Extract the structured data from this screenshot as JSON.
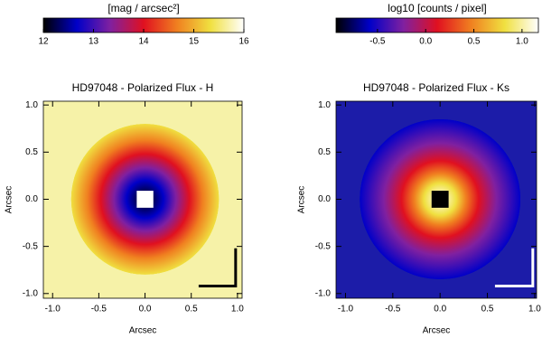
{
  "chart_data": [
    {
      "type": "image",
      "title": "HD97048 - Polarized Flux - H",
      "xlabel": "Arcsec",
      "ylabel": "Arcsec",
      "colorbar_label": "[mag / arcsec²]",
      "clim": [
        12,
        16
      ],
      "cticks": [
        12,
        13,
        14,
        15,
        16
      ],
      "colormap": [
        "#000000",
        "#0000c8",
        "#8020a0",
        "#e01020",
        "#f08020",
        "#f0e040",
        "#ffffff"
      ],
      "xlim": [
        -1.1,
        1.05
      ],
      "ylim": [
        -1.05,
        1.04
      ],
      "xticks": [
        {
          "value": -1.0,
          "label": "-1.0"
        },
        -0.5,
        {
          "value": 0.0,
          "label": "0.0"
        },
        0.5,
        {
          "value": 1.0,
          "label": "1.0"
        }
      ],
      "yticks": [
        {
          "value": -1.0,
          "label": "-1.0"
        },
        -0.5,
        {
          "value": 0.0,
          "label": "0.0"
        },
        0.5,
        {
          "value": 1.0,
          "label": "1.0"
        }
      ]
    },
    {
      "type": "image",
      "title": "HD97048 - Polarized Flux - Ks",
      "xlabel": "Arcsec",
      "ylabel": "Arcsec",
      "colorbar_label": "log10 [counts / pixel]",
      "clim": [
        -0.93,
        1.17
      ],
      "cticks": [
        -0.5,
        {
          "value": 0.0,
          "label": "0.0"
        },
        0.5,
        {
          "value": 1.0,
          "label": "1.0"
        }
      ],
      "colormap": [
        "#000000",
        "#0000c8",
        "#8020a0",
        "#e01020",
        "#f08020",
        "#f0e040",
        "#ffffff"
      ],
      "xlim": [
        -1.1,
        1.02
      ],
      "ylim": [
        -1.05,
        1.04
      ],
      "xticks": [
        {
          "value": -1.0,
          "label": "-1.0"
        },
        -0.5,
        {
          "value": 0.0,
          "label": "0.0"
        },
        0.5,
        {
          "value": 1.0,
          "label": "1.0"
        }
      ],
      "yticks": [
        {
          "value": -1.0,
          "label": "-1.0"
        },
        -0.5,
        {
          "value": 0.0,
          "label": "0.0"
        },
        0.5,
        {
          "value": 1.0,
          "label": "1.0"
        }
      ]
    }
  ]
}
